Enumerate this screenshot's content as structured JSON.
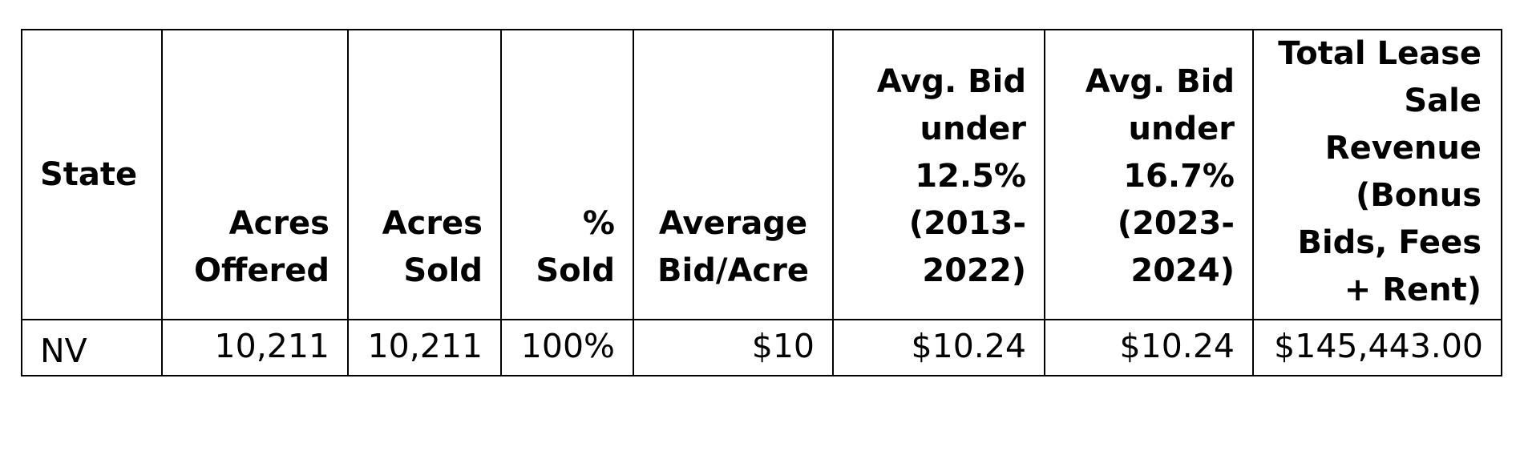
{
  "table": {
    "headers": [
      [
        "State"
      ],
      [
        "Acres",
        "Offered"
      ],
      [
        "Acres",
        "Sold"
      ],
      [
        "%",
        "Sold"
      ],
      [
        "Average",
        "Bid/Acre"
      ],
      [
        "Avg. Bid",
        "under",
        "12.5%",
        "(2013-",
        "2022)"
      ],
      [
        "Avg. Bid",
        "under",
        "16.7%",
        "(2023-",
        "2024)"
      ],
      [
        "Total Lease",
        "Sale",
        "Revenue",
        "(Bonus",
        "Bids, Fees",
        "+ Rent)"
      ]
    ],
    "rows": [
      {
        "state": "NV",
        "acres_offered": "10,211",
        "acres_sold": "10,211",
        "pct_sold": "100%",
        "average_bid_acre": "$10",
        "avg_bid_12_5": "$10.24",
        "avg_bid_16_7": "$10.24",
        "total_revenue": "$145,443.00"
      }
    ]
  }
}
